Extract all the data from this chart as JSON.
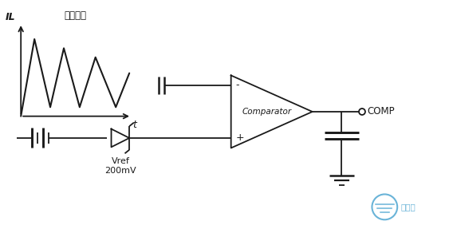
{
  "bg_color": "#ffffff",
  "line_color": "#1a1a1a",
  "fig_width": 5.68,
  "fig_height": 2.97,
  "dpi": 100,
  "waveform_label": "电感电流",
  "il_label": "IL",
  "t_label": "t",
  "comp_label": "Comparator",
  "comp_out_label": "COMP",
  "vref_label": "Vref\n200mV",
  "logo_text": "日月辰",
  "minus_sign": "-",
  "plus_sign": "+"
}
